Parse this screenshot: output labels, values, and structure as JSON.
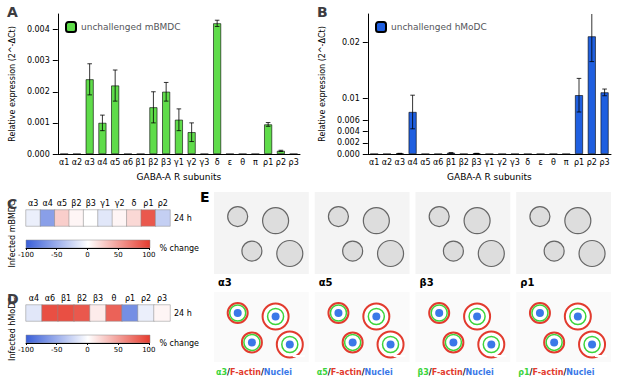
{
  "chart_data": [
    {
      "type": "bar",
      "title": "A",
      "legend": "upper left",
      "grid": false,
      "categories": [
        "α1",
        "α2",
        "α3",
        "α4",
        "α5",
        "α6",
        "β1",
        "β2",
        "β3",
        "γ1",
        "γ2",
        "γ3",
        "δ",
        "ε",
        "θ",
        "π",
        "ρ1",
        "ρ2",
        "ρ3"
      ],
      "series": [
        {
          "name": "unchallenged mBMDC",
          "color": "#5fdc4a",
          "values": [
            0,
            0,
            0.0024,
            0.001,
            0.0022,
            0,
            0,
            0.0015,
            0.002,
            0.0011,
            0.0007,
            0,
            0.0042,
            0,
            0,
            0,
            0.00095,
            0.0001,
            0
          ],
          "errors": [
            0,
            0,
            0.0005,
            0.00025,
            0.0005,
            0,
            0,
            0.0005,
            0.0003,
            0.00035,
            0.0003,
            0,
            0.0001,
            0,
            0,
            0,
            6e-05,
            2e-05,
            0
          ]
        }
      ],
      "xlabel": "GABA-A R subunits",
      "ylabel": "Relative expression (2^-ΔCt)",
      "ylim": [
        0,
        0.0045
      ],
      "yticks": [
        {
          "value": 0,
          "label": "0.000"
        },
        0.001,
        0.002,
        0.003,
        0.004
      ]
    },
    {
      "type": "bar",
      "title": "B",
      "legend": "upper left",
      "grid": false,
      "categories": [
        "α1",
        "α2",
        "α3",
        "α4",
        "α5",
        "α6",
        "β1",
        "β2",
        "β3",
        "γ1",
        "γ2",
        "γ3",
        "δ",
        "ε",
        "θ",
        "π",
        "ρ1",
        "ρ2",
        "ρ3"
      ],
      "series": [
        {
          "name": "unchallenged hMoDC",
          "color": "#1f5fe0",
          "values": [
            0,
            0,
            0.0001,
            0.0075,
            0,
            0,
            0.0002,
            0,
            0.0001,
            0,
            0,
            0,
            0,
            0,
            0,
            0,
            0.0105,
            0.021,
            0.011
          ],
          "errors": [
            0,
            0,
            2e-05,
            0.003,
            0,
            0,
            3e-05,
            0,
            2e-05,
            0,
            0,
            0,
            0,
            0,
            0,
            0,
            0.003,
            0.0045,
            0.0006
          ]
        }
      ],
      "xlabel": "GABA-A R subunits",
      "ylabel": "Relative expression (2^-ΔCt)",
      "ylim": [
        0,
        0.025
      ],
      "yticks": [
        {
          "value": 0,
          "label": "0.000"
        },
        0.002,
        0.004,
        0.006,
        0.01,
        0.02
      ]
    },
    {
      "type": "heatmap",
      "title": "C",
      "ylabel": "Infected mBMDC",
      "categories": [
        "α3",
        "α4",
        "α5",
        "β2",
        "β3",
        "γ1",
        "γ2",
        "δ",
        "ρ1",
        "ρ2"
      ],
      "rows": [
        "24 h"
      ],
      "values": [
        [
          -10,
          -60,
          25,
          5,
          0,
          -15,
          5,
          20,
          85,
          -30
        ]
      ],
      "colorbar": {
        "range": [
          -100,
          100
        ],
        "ticks": [
          -100,
          -50,
          0,
          50,
          100
        ],
        "label": "% change",
        "colors": [
          "#3a5fd8",
          "#ffffff",
          "#e63b2e"
        ]
      }
    },
    {
      "type": "heatmap",
      "title": "D",
      "ylabel": "Infected hMoDC",
      "categories": [
        "α4",
        "α6",
        "β1",
        "β2",
        "β3",
        "θ",
        "ρ1",
        "ρ2",
        "ρ3"
      ],
      "rows": [
        "24 h"
      ],
      "values": [
        [
          -15,
          90,
          90,
          85,
          10,
          80,
          -70,
          -10,
          5
        ]
      ],
      "colorbar": {
        "range": [
          -100,
          100
        ],
        "ticks": [
          -100,
          -50,
          0,
          50,
          100
        ],
        "label": "% change",
        "colors": [
          "#3a5fd8",
          "#ffffff",
          "#e63b2e"
        ]
      }
    }
  ],
  "image_panel": {
    "title": "E",
    "images": [
      {
        "label": "α3",
        "overlay": "α3/F-actin/Nuclei"
      },
      {
        "label": "α5",
        "overlay": "α5/F-actin/Nuclei"
      },
      {
        "label": "β3",
        "overlay": "β3/F-actin/Nuclei"
      },
      {
        "label": "ρ1",
        "overlay": "ρ1/F-actin/Nuclei"
      }
    ]
  }
}
